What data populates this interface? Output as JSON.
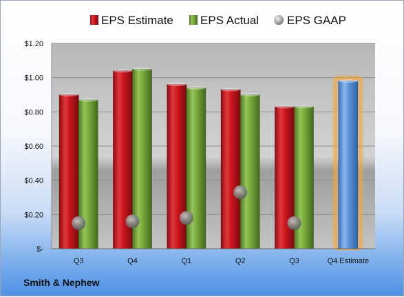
{
  "chart_data": {
    "type": "bar",
    "categories": [
      "Q3",
      "Q4",
      "Q1",
      "Q2",
      "Q3",
      "Q4 Estimate"
    ],
    "series": [
      {
        "name": "EPS Estimate",
        "values": [
          0.9,
          1.04,
          0.96,
          0.93,
          0.83,
          null
        ]
      },
      {
        "name": "EPS Actual",
        "values": [
          0.87,
          1.05,
          0.94,
          0.9,
          0.83,
          null
        ]
      },
      {
        "name": "EPS GAAP",
        "values": [
          0.15,
          0.16,
          0.18,
          0.33,
          0.15,
          null
        ]
      }
    ],
    "forecast": {
      "category": "Q4 Estimate",
      "value": 0.98
    },
    "ylim": [
      0,
      1.2
    ],
    "y_ticks": [
      {
        "value": 0,
        "label": "$-"
      },
      {
        "value": 0.2,
        "label": "$0.20"
      },
      {
        "value": 0.4,
        "label": "$0.40"
      },
      {
        "value": 0.6,
        "label": "$0.60"
      },
      {
        "value": 0.8,
        "label": "$0.80"
      },
      {
        "value": 1.0,
        "label": "$1.00"
      },
      {
        "value": 1.2,
        "label": "$1.20"
      }
    ],
    "legend_position": "top",
    "grid": true,
    "colors": {
      "estimate": "#c8141c",
      "actual": "#76a83a",
      "gaap": "#8a8a8a",
      "forecast": "#5b93d9",
      "forecast_glow": "#f4a63c"
    }
  },
  "footer": {
    "company": "Smith & Nephew"
  }
}
